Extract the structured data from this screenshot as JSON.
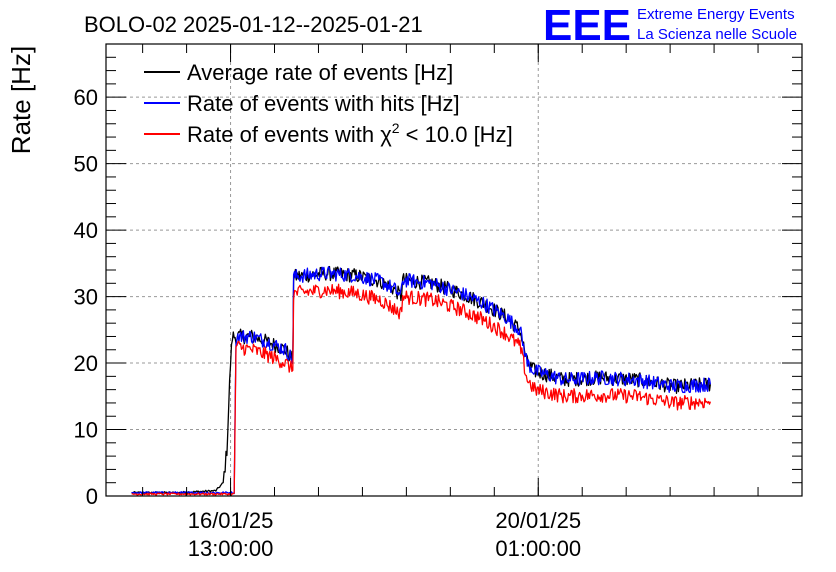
{
  "chart_data": {
    "type": "line",
    "title": "BOLO-02 2025-01-12--2025-01-21",
    "ylabel": "Rate [Hz]",
    "xlabel": "",
    "ylim": [
      0,
      68
    ],
    "yticks": [
      "0",
      "10",
      "20",
      "30",
      "40",
      "50",
      "60"
    ],
    "xlim_hours": [
      -15,
      175
    ],
    "xtick_labels": [
      {
        "date": "16/01/25",
        "time": "13:00:00",
        "hours": 19
      },
      {
        "date": "20/01/25",
        "time": "01:00:00",
        "hours": 103
      }
    ],
    "grid": true,
    "legend_position": "top-left",
    "series": [
      {
        "name": "Average rate of events [Hz]",
        "color": "#000000",
        "points": [
          [
            -8,
            0.5
          ],
          [
            5,
            0.5
          ],
          [
            15,
            0.8
          ],
          [
            17,
            2
          ],
          [
            18,
            7
          ],
          [
            19,
            20
          ],
          [
            19.5,
            24
          ],
          [
            25,
            24
          ],
          [
            30,
            23
          ],
          [
            34,
            22
          ],
          [
            36,
            20.5
          ],
          [
            36.2,
            33
          ],
          [
            45,
            33.5
          ],
          [
            53,
            33.2
          ],
          [
            60,
            32.3
          ],
          [
            64,
            31
          ],
          [
            65.5,
            30
          ],
          [
            66,
            32.5
          ],
          [
            74,
            32
          ],
          [
            82,
            30.5
          ],
          [
            88,
            29
          ],
          [
            94,
            27
          ],
          [
            98,
            25
          ],
          [
            100,
            20
          ],
          [
            102,
            18.8
          ],
          [
            110,
            17.5
          ],
          [
            120,
            17.8
          ],
          [
            130,
            17.5
          ],
          [
            140,
            16.5
          ],
          [
            150,
            16.8
          ]
        ]
      },
      {
        "name": "Rate of events with hits [Hz]",
        "color": "#0000ff",
        "points": [
          [
            -8,
            0.5
          ],
          [
            20,
            0.5
          ],
          [
            20.5,
            24
          ],
          [
            25,
            24
          ],
          [
            30,
            23
          ],
          [
            34,
            22
          ],
          [
            36,
            20.5
          ],
          [
            36.2,
            33
          ],
          [
            45,
            33.5
          ],
          [
            53,
            33.2
          ],
          [
            60,
            32.3
          ],
          [
            64,
            31
          ],
          [
            65.5,
            30
          ],
          [
            66,
            32.5
          ],
          [
            74,
            32
          ],
          [
            82,
            30.5
          ],
          [
            88,
            29
          ],
          [
            94,
            27
          ],
          [
            98,
            25
          ],
          [
            100,
            20
          ],
          [
            102,
            18.8
          ],
          [
            110,
            17.5
          ],
          [
            120,
            17.8
          ],
          [
            130,
            17.5
          ],
          [
            140,
            16.5
          ],
          [
            150,
            16.8
          ]
        ]
      },
      {
        "name": "Rate of events with χ² < 10.0 [Hz]",
        "legend_text": "Rate of events with χ",
        "legend_sup": "2",
        "legend_tail": " < 10.0 [Hz]",
        "color": "#ff0000",
        "points": [
          [
            -8,
            0.3
          ],
          [
            20,
            0.3
          ],
          [
            20.5,
            22.5
          ],
          [
            25,
            22
          ],
          [
            30,
            21
          ],
          [
            34,
            20
          ],
          [
            36,
            19
          ],
          [
            36.2,
            30.5
          ],
          [
            45,
            31
          ],
          [
            53,
            30.5
          ],
          [
            60,
            29.5
          ],
          [
            64,
            28
          ],
          [
            65.5,
            27.5
          ],
          [
            66,
            30
          ],
          [
            74,
            29.5
          ],
          [
            82,
            28
          ],
          [
            88,
            26.5
          ],
          [
            94,
            24.5
          ],
          [
            98,
            22.5
          ],
          [
            100,
            17.5
          ],
          [
            102,
            16
          ],
          [
            110,
            15
          ],
          [
            120,
            15.2
          ],
          [
            130,
            15
          ],
          [
            140,
            14
          ],
          [
            150,
            14.2
          ]
        ]
      }
    ]
  },
  "logo": {
    "mark": "EEE",
    "line1": "Extreme Energy Events",
    "line2": "La Scienza nelle Scuole",
    "color": "#0000ff"
  }
}
